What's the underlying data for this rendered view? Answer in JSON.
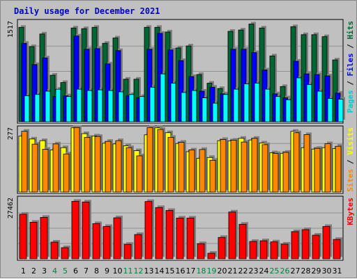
{
  "title": "Daily usage for December 2021",
  "colors": {
    "background": "#c0c0c0",
    "title": "#0000cc",
    "pages": "#00cccc",
    "files": "#0000ff",
    "hits": "#006633",
    "sites": "#ff8800",
    "visits": "#ffff00",
    "kbytes": "#ff0000",
    "weekend_label": "#008040",
    "weekday_label": "#000000"
  },
  "chart_data": {
    "type": "bar",
    "title": "Daily usage for December 2021",
    "categories": [
      "1",
      "2",
      "3",
      "4",
      "5",
      "6",
      "7",
      "8",
      "9",
      "10",
      "11",
      "12",
      "13",
      "14",
      "15",
      "16",
      "17",
      "18",
      "19",
      "20",
      "21",
      "22",
      "23",
      "24",
      "25",
      "26",
      "27",
      "28",
      "29",
      "30",
      "31"
    ],
    "weekend_days": [
      "4",
      "5",
      "11",
      "12",
      "18",
      "19",
      "25",
      "26"
    ],
    "panels": [
      {
        "name": "pages-files-hits",
        "ymax": 1517,
        "ymax_label": "1517",
        "right_label": [
          {
            "text": "Pages",
            "color": "#00cccc"
          },
          {
            "text": " / ",
            "color": "#000000"
          },
          {
            "text": "Files",
            "color": "#0000ff"
          },
          {
            "text": " / ",
            "color": "#000000"
          },
          {
            "text": "Hits",
            "color": "#006633"
          }
        ],
        "series": [
          {
            "name": "Hits",
            "color": "#006633",
            "values": [
              1420,
              1130,
              1320,
              700,
              590,
              1410,
              1400,
              1420,
              1180,
              1260,
              640,
              640,
              1420,
              1420,
              1350,
              1110,
              1140,
              710,
              580,
              500,
              1360,
              1380,
              1470,
              1410,
              990,
              530,
              1430,
              1310,
              1310,
              1280,
              930
            ]
          },
          {
            "name": "Files",
            "color": "#0000ff",
            "values": [
              1180,
              860,
              960,
              380,
              390,
              1290,
              1090,
              1100,
              870,
              1070,
              390,
              360,
              1090,
              1330,
              1080,
              920,
              680,
              460,
              520,
              420,
              1090,
              1090,
              1040,
              780,
              420,
              360,
              910,
              720,
              710,
              690,
              430
            ]
          },
          {
            "name": "Pages",
            "color": "#00ffff",
            "values": [
              390,
              410,
              460,
              490,
              380,
              490,
              470,
              480,
              470,
              450,
              410,
              380,
              520,
              720,
              580,
              440,
              470,
              360,
              280,
              410,
              490,
              570,
              580,
              490,
              380,
              330,
              660,
              560,
              460,
              350,
              340
            ]
          }
        ]
      },
      {
        "name": "sites-visits",
        "ymax": 277,
        "ymax_label": "277",
        "right_label": [
          {
            "text": "Sites",
            "color": "#ff8800"
          },
          {
            "text": " / ",
            "color": "#000000"
          },
          {
            "text": "Visits",
            "color": "#ffff00"
          }
        ],
        "series": [
          {
            "name": "Visits",
            "color": "#ffff00",
            "values": [
              240,
              227,
              220,
              180,
              190,
              275,
              250,
              240,
              209,
              206,
              198,
              177,
              245,
              275,
              254,
              208,
              173,
              144,
              148,
              220,
              219,
              230,
              223,
              210,
              168,
              166,
              260,
              190,
              184,
              190,
              186
            ]
          },
          {
            "name": "Sites",
            "color": "#ff8800",
            "values": [
              260,
              205,
              183,
              206,
              163,
              276,
              234,
              238,
              217,
              220,
              190,
              155,
              276,
              268,
              234,
              213,
              180,
              182,
              136,
              225,
              222,
              214,
              230,
              203,
              165,
              170,
              254,
              246,
              187,
              207,
              196
            ]
          }
        ]
      },
      {
        "name": "kbytes",
        "ymax": 27462,
        "ymax_label": "27462",
        "right_label": [
          {
            "text": "KBytes",
            "color": "#ff0000"
          }
        ],
        "series": [
          {
            "name": "KBytes",
            "color": "#ff0000",
            "values": [
              20000,
              16400,
              18600,
              7500,
              5000,
              25800,
              25500,
              15800,
              14500,
              18400,
              6500,
              10900,
              25700,
              23000,
              21700,
              18300,
              18300,
              6800,
              2500,
              9600,
              21000,
              15500,
              7800,
              8100,
              7600,
              6600,
              12200,
              13100,
              10600,
              14500,
              8700
            ]
          }
        ]
      }
    ]
  }
}
